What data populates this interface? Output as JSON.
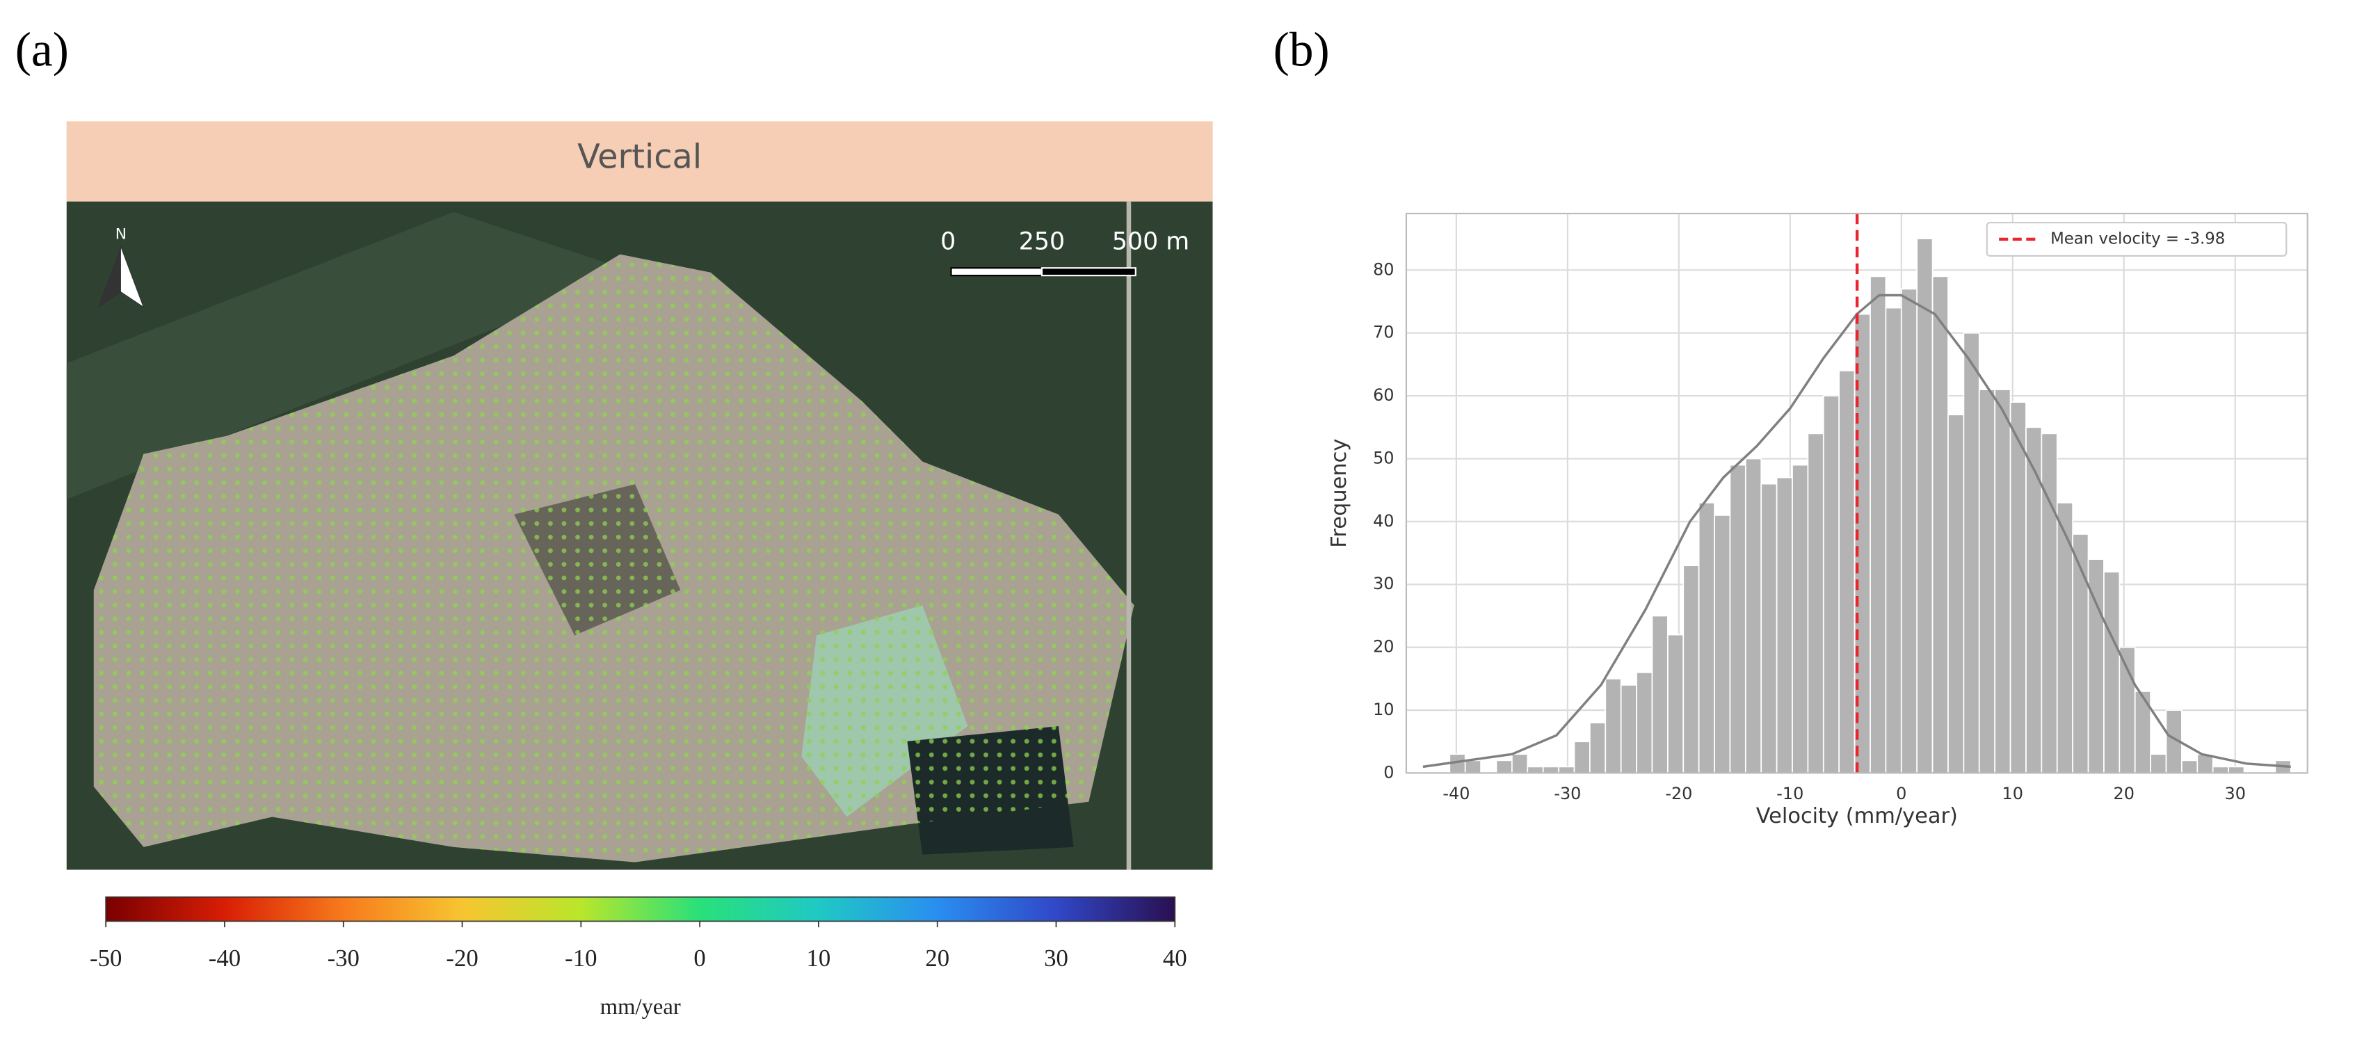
{
  "chart_data": [
    {
      "type": "colorbar",
      "panel_label": "(a)",
      "title": "Vertical",
      "north_label": "N",
      "scale_bar_labels": [
        "0",
        "250",
        "500 m"
      ],
      "xlim": [
        -50,
        40
      ],
      "xticks": [
        -50,
        -40,
        -30,
        -20,
        -10,
        0,
        10,
        20,
        30,
        40
      ],
      "xlabel": "mm/year",
      "colors": [
        "#7a0000",
        "#d81e05",
        "#f77a1c",
        "#f7c531",
        "#b9e62b",
        "#29e07a",
        "#1fc9c4",
        "#2a8ef0",
        "#3048c8",
        "#2a0f50"
      ]
    },
    {
      "type": "histogram",
      "panel_label": "(b)",
      "xlabel": "Velocity (mm/year)",
      "ylabel": "Frequency",
      "color": "#b3b3b3",
      "bins": [
        -40.6,
        -39.2,
        -37.8,
        -36.4,
        -35.0,
        -33.6,
        -32.2,
        -30.8,
        -29.4,
        -28.0,
        -26.6,
        -25.2,
        -23.8,
        -22.4,
        -21.0,
        -19.6,
        -18.2,
        -16.8,
        -15.4,
        -14.0,
        -12.6,
        -11.2,
        -9.8,
        -8.4,
        -7.0,
        -5.6,
        -4.2,
        -2.8,
        -1.4,
        0.0,
        1.4,
        2.8,
        4.2,
        5.6,
        7.0,
        8.4,
        9.8,
        11.2,
        12.6,
        14.0,
        15.4,
        16.8,
        18.2,
        19.6,
        21.0,
        22.4,
        23.8,
        25.2,
        26.6,
        28.0,
        29.4,
        30.8,
        32.2,
        33.6,
        35.0
      ],
      "values": [
        3,
        2,
        0,
        2,
        3,
        1,
        1,
        1,
        5,
        8,
        15,
        14,
        16,
        25,
        22,
        33,
        43,
        41,
        49,
        50,
        46,
        47,
        49,
        54,
        60,
        64,
        73,
        79,
        74,
        77,
        85,
        79,
        57,
        70,
        61,
        61,
        59,
        55,
        54,
        43,
        38,
        34,
        32,
        20,
        13,
        3,
        10,
        2,
        3,
        1,
        1,
        0,
        0,
        2
      ],
      "kde": {
        "color": "#808080",
        "x": [
          -43,
          -39,
          -35,
          -31,
          -27,
          -23,
          -19,
          -16,
          -13,
          -10,
          -7,
          -4,
          -2,
          0,
          3,
          6,
          9,
          12,
          15,
          18,
          21,
          24,
          27,
          31,
          35
        ],
        "values": [
          1,
          2,
          3,
          6,
          14,
          26,
          40,
          47,
          52,
          58,
          66,
          73,
          76,
          76,
          73,
          66,
          58,
          48,
          37,
          25,
          14,
          6,
          3,
          1.5,
          1
        ]
      },
      "mean": {
        "value": -3.98,
        "label": "Mean velocity = -3.98",
        "color": "#e8262b"
      },
      "legend": "upper right",
      "xlim": [
        -44.5,
        36.5
      ],
      "xticks": [
        -40,
        -30,
        -20,
        -10,
        0,
        10,
        20,
        30
      ],
      "ylim": [
        0,
        89
      ],
      "yticks": [
        0,
        10,
        20,
        30,
        40,
        50,
        60,
        70,
        80
      ],
      "grid": true
    }
  ]
}
